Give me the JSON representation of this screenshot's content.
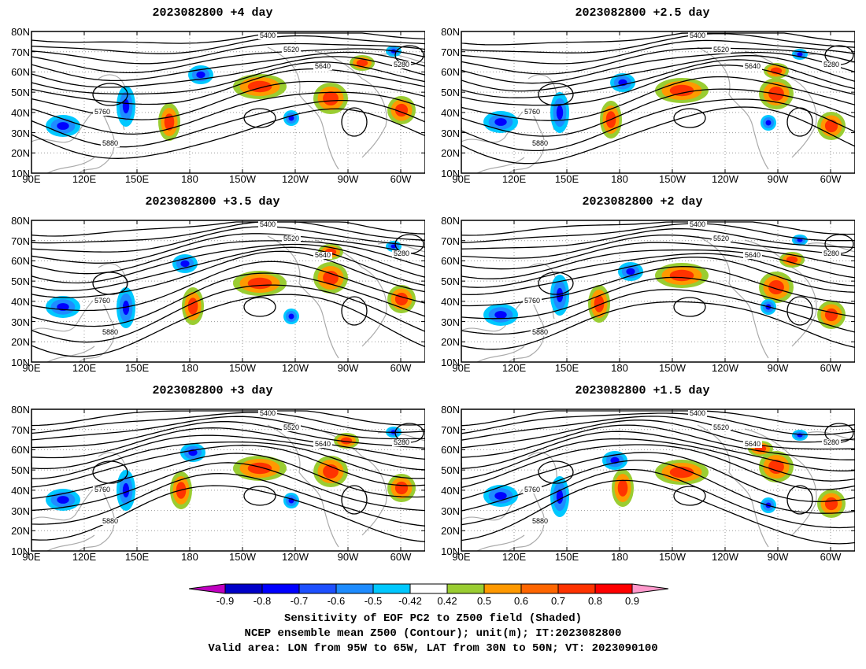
{
  "panels": [
    {
      "title": "2023082800  +4 day"
    },
    {
      "title": "2023082800  +2.5 day"
    },
    {
      "title": "2023082800  +3.5 day"
    },
    {
      "title": "2023082800  +2 day"
    },
    {
      "title": "2023082800  +3 day"
    },
    {
      "title": "2023082800  +1.5 day"
    }
  ],
  "lat_ticks": [
    "80N",
    "70N",
    "60N",
    "50N",
    "40N",
    "30N",
    "20N",
    "10N"
  ],
  "lon_ticks": [
    "90E",
    "120E",
    "150E",
    "180",
    "150W",
    "120W",
    "90W",
    "60W"
  ],
  "contour_labels": [
    "5280",
    "5400",
    "5520",
    "5640",
    "5760",
    "5880"
  ],
  "colorbar": {
    "ticks": [
      "-0.9",
      "-0.8",
      "-0.7",
      "-0.6",
      "-0.5",
      "-0.42",
      "0.42",
      "0.5",
      "0.6",
      "0.7",
      "0.8",
      "0.9"
    ],
    "colors": [
      "#c000c0",
      "#0000c8",
      "#0000ff",
      "#1e50ff",
      "#1e8cff",
      "#00c8ff",
      "#ffffff",
      "#9acd32",
      "#ff9900",
      "#ff6600",
      "#ff3300",
      "#ff0000",
      "#ff99cc"
    ]
  },
  "caption": {
    "line1": "Sensitivity of EOF PC2 to Z500 field (Shaded)",
    "line2": "NCEP ensemble mean Z500 (Contour); unit(m); IT:2023082800",
    "line3": "Valid area: LON from 95W to 65W, LAT from 30N to 50N; VT: 2023090100"
  }
}
